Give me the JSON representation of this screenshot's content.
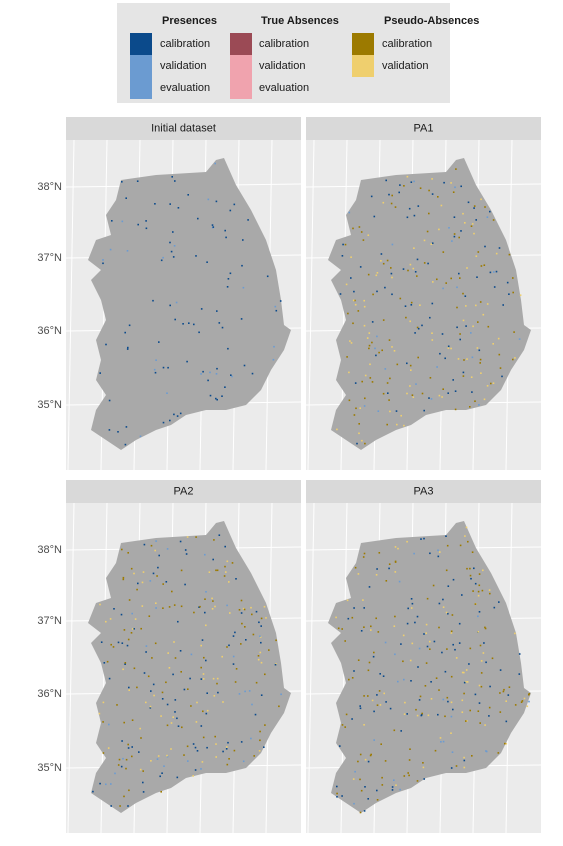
{
  "legend": {
    "groups": [
      {
        "title": "Presences",
        "items": [
          {
            "label": "calibration",
            "color": "#0b4a8b"
          },
          {
            "label": "validation",
            "color": "#6b9bd1"
          },
          {
            "label": "evaluation",
            "color": "#6b9bd1"
          }
        ]
      },
      {
        "title": "True Absences",
        "items": [
          {
            "label": "calibration",
            "color": "#9b4a55"
          },
          {
            "label": "validation",
            "color": "#f0a3ae"
          },
          {
            "label": "evaluation",
            "color": "#f0a3ae"
          }
        ]
      },
      {
        "title": "Pseudo-Absences",
        "items": [
          {
            "label": "calibration",
            "color": "#9c7a00"
          },
          {
            "label": "validation",
            "color": "#efcf6e"
          }
        ]
      }
    ]
  },
  "panels": [
    {
      "title": "Initial dataset"
    },
    {
      "title": "PA1"
    },
    {
      "title": "PA2"
    },
    {
      "title": "PA3"
    }
  ],
  "y_axis_labels": [
    "38°N",
    "37°N",
    "36°N",
    "35°N"
  ]
}
